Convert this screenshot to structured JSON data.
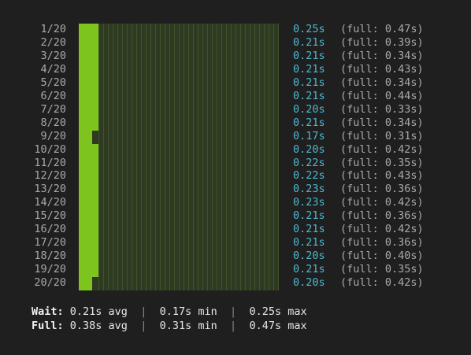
{
  "runs": [
    {
      "label": "1/20",
      "wait": "0.25s",
      "full": "(full: 0.47s)",
      "fill_fraction": 0.099
    },
    {
      "label": "2/20",
      "wait": "0.21s",
      "full": "(full: 0.39s)",
      "fill_fraction": 0.099
    },
    {
      "label": "3/20",
      "wait": "0.21s",
      "full": "(full: 0.34s)",
      "fill_fraction": 0.099
    },
    {
      "label": "4/20",
      "wait": "0.21s",
      "full": "(full: 0.43s)",
      "fill_fraction": 0.099
    },
    {
      "label": "5/20",
      "wait": "0.21s",
      "full": "(full: 0.34s)",
      "fill_fraction": 0.099
    },
    {
      "label": "6/20",
      "wait": "0.21s",
      "full": "(full: 0.44s)",
      "fill_fraction": 0.099
    },
    {
      "label": "7/20",
      "wait": "0.20s",
      "full": "(full: 0.33s)",
      "fill_fraction": 0.099
    },
    {
      "label": "8/20",
      "wait": "0.21s",
      "full": "(full: 0.34s)",
      "fill_fraction": 0.099
    },
    {
      "label": "9/20",
      "wait": "0.17s",
      "full": "(full: 0.31s)",
      "fill_fraction": 0.067
    },
    {
      "label": "10/20",
      "wait": "0.20s",
      "full": "(full: 0.42s)",
      "fill_fraction": 0.099
    },
    {
      "label": "11/20",
      "wait": "0.22s",
      "full": "(full: 0.35s)",
      "fill_fraction": 0.099
    },
    {
      "label": "12/20",
      "wait": "0.22s",
      "full": "(full: 0.43s)",
      "fill_fraction": 0.099
    },
    {
      "label": "13/20",
      "wait": "0.23s",
      "full": "(full: 0.36s)",
      "fill_fraction": 0.099
    },
    {
      "label": "14/20",
      "wait": "0.23s",
      "full": "(full: 0.42s)",
      "fill_fraction": 0.099
    },
    {
      "label": "15/20",
      "wait": "0.21s",
      "full": "(full: 0.36s)",
      "fill_fraction": 0.099
    },
    {
      "label": "16/20",
      "wait": "0.21s",
      "full": "(full: 0.42s)",
      "fill_fraction": 0.099
    },
    {
      "label": "17/20",
      "wait": "0.21s",
      "full": "(full: 0.36s)",
      "fill_fraction": 0.099
    },
    {
      "label": "18/20",
      "wait": "0.20s",
      "full": "(full: 0.40s)",
      "fill_fraction": 0.099
    },
    {
      "label": "19/20",
      "wait": "0.21s",
      "full": "(full: 0.35s)",
      "fill_fraction": 0.099
    },
    {
      "label": "20/20",
      "wait": "0.20s",
      "full": "(full: 0.42s)",
      "fill_fraction": 0.067
    }
  ],
  "summary": {
    "wait": {
      "label": "Wait:",
      "avg": "0.21s avg",
      "min": "0.17s min",
      "max": "0.25s max"
    },
    "full": {
      "label": "Full:",
      "avg": "0.38s avg",
      "min": "0.31s min",
      "max": "0.47s max"
    },
    "separator": "|"
  },
  "colors": {
    "background": "#1f1f1f",
    "bar_fill": "#7ec41e",
    "bar_track": "#2f3a22",
    "wait_time": "#4fb6cf",
    "dim_text": "#a9a9a9",
    "bold_text": "#f2f2f2"
  }
}
